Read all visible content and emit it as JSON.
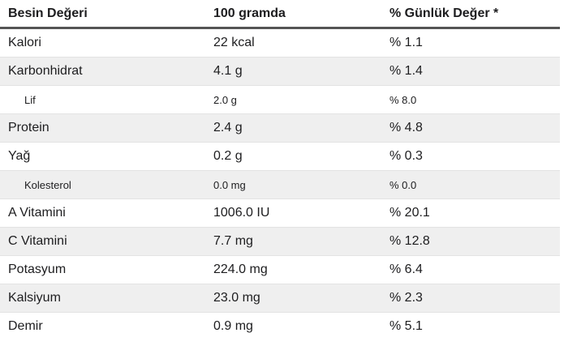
{
  "table": {
    "header": [
      "Besin Değeri",
      "100 gramda",
      "% Günlük Değer *"
    ],
    "rows": [
      [
        "Kalori",
        "22 kcal",
        "% 1.1"
      ],
      [
        "Karbonhidrat",
        "4.1 g",
        "% 1.4"
      ],
      [
        "Lif",
        "2.0 g",
        "% 8.0"
      ],
      [
        "Protein",
        "2.4 g",
        "% 4.8"
      ],
      [
        "Yağ",
        "0.2 g",
        "% 0.3"
      ],
      [
        "Kolesterol",
        "0.0 mg",
        "% 0.0"
      ],
      [
        "A Vitamini",
        "1006.0 IU",
        "% 20.1"
      ],
      [
        "C Vitamini",
        "7.7 mg",
        "% 12.8"
      ],
      [
        "Potasyum",
        "224.0 mg",
        "% 6.4"
      ],
      [
        "Kalsiyum",
        "23.0 mg",
        "% 2.3"
      ],
      [
        "Demir",
        "0.9 mg",
        "% 5.1"
      ]
    ]
  }
}
